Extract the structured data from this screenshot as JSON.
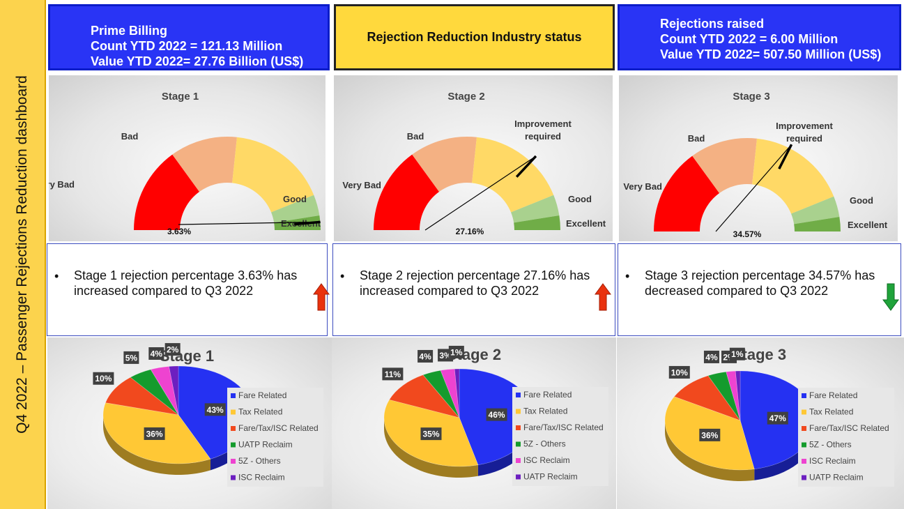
{
  "sidebar": {
    "title": "Q4 2022 – Passenger Rejections Reduction dashboard"
  },
  "header": {
    "left": {
      "lines": [
        "Prime Billing",
        "Count YTD 2022 = 121.13 Million",
        "Value YTD 2022= 27.76 Billion (US$)"
      ]
    },
    "center": {
      "title": "Rejection Reduction Industry status"
    },
    "right": {
      "lines": [
        "Rejections raised",
        "Count YTD 2022 = 6.00 Million",
        "Value YTD 2022= 507.50 Million (US$)"
      ]
    }
  },
  "colors": {
    "very_bad": "#ff0000",
    "bad": "#f4b183",
    "improvement": "#ffd966",
    "good": "#a9d18e",
    "excellent": "#70ad47",
    "fare": "#2531f2",
    "tax": "#ffc835",
    "fare_tax_isc": "#f1491e",
    "green": "#149b2d",
    "pink": "#ee43d0",
    "purple": "#6c1fc0",
    "arrow_up": "#e9320e",
    "arrow_down": "#1fa33a"
  },
  "chart_data": [
    {
      "type": "gauge",
      "title": "Stage 1",
      "value": 3.63,
      "value_label": "3.63%",
      "bands": [
        "Very Bad",
        "Bad",
        "",
        "Good",
        "Excellent"
      ]
    },
    {
      "type": "gauge",
      "title": "Stage 2",
      "value": 27.16,
      "value_label": "27.16%",
      "bands": [
        "Very Bad",
        "Bad",
        "Improvement required",
        "Good",
        "Excellent"
      ]
    },
    {
      "type": "gauge",
      "title": "Stage 3",
      "value": 34.57,
      "value_label": "34.57%",
      "bands": [
        "Very Bad",
        "Bad",
        "Improvement required",
        "Good",
        "Excellent"
      ]
    },
    {
      "type": "pie",
      "title": "Stage 1",
      "labels": [
        "Fare Related",
        "Tax Related",
        "Fare/Tax/ISC Related",
        "UATP Reclaim",
        "5Z - Others",
        "ISC Reclaim"
      ],
      "values": [
        43,
        36,
        10,
        5,
        4,
        2
      ],
      "value_labels": [
        "43%",
        "36%",
        "10%",
        "5%",
        "4%",
        "2%"
      ]
    },
    {
      "type": "pie",
      "title": "Stage 2",
      "labels": [
        "Fare Related",
        "Tax Related",
        "Fare/Tax/ISC Related",
        "5Z - Others",
        "ISC Reclaim",
        "UATP Reclaim"
      ],
      "values": [
        46,
        35,
        11,
        4,
        3,
        1
      ],
      "value_labels": [
        "46%",
        "35%",
        "11%",
        "4%",
        "3%",
        "1%"
      ]
    },
    {
      "type": "pie",
      "title": "Stage 3",
      "labels": [
        "Fare Related",
        "Tax Related",
        "Fare/Tax/ISC Related",
        "5Z - Others",
        "ISC Reclaim",
        "UATP Reclaim"
      ],
      "values": [
        47,
        36,
        10,
        4,
        2,
        1
      ],
      "value_labels": [
        "47%",
        "36%",
        "10%",
        "4%",
        "2%",
        "1%"
      ]
    }
  ],
  "status": [
    {
      "text": "Stage 1 rejection percentage 3.63% has increased compared to Q3 2022",
      "trend": "up"
    },
    {
      "text": "Stage 2 rejection percentage 27.16% has increased compared to Q3 2022",
      "trend": "up"
    },
    {
      "text": "Stage 3 rejection percentage 34.57% has decreased compared to Q3 2022",
      "trend": "down"
    }
  ]
}
